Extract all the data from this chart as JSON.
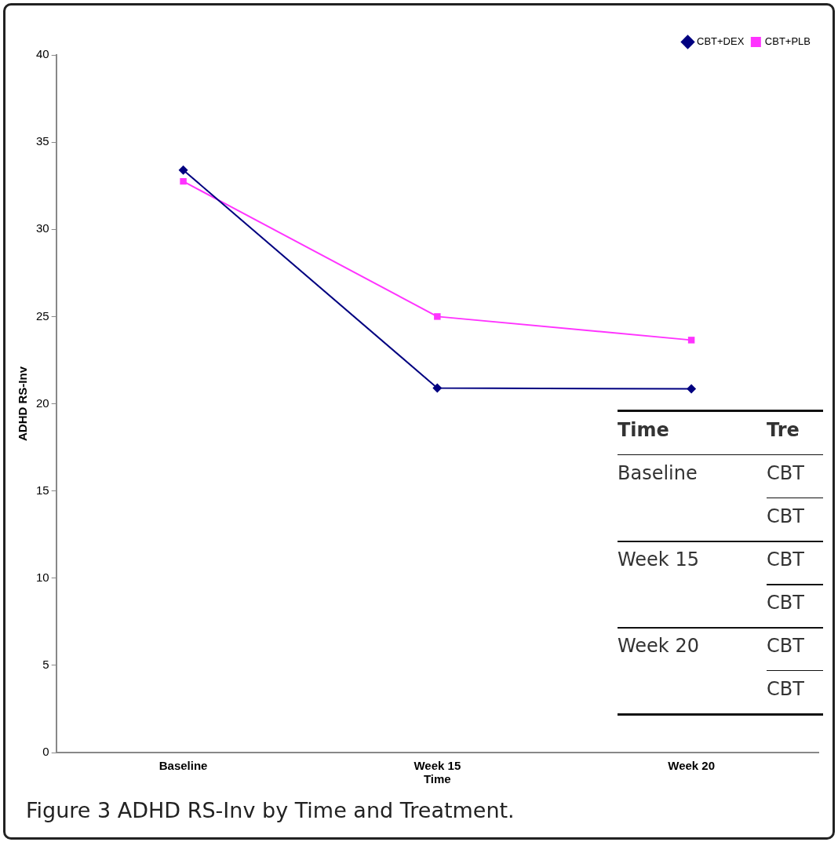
{
  "chart_data": {
    "type": "line",
    "title": "Figure 3 ADHD RS-Inv by Time and Treatment.",
    "xlabel": "Time",
    "ylabel": "ADHD RS-Inv",
    "categories": [
      "Baseline",
      "Week 15",
      "Week 20"
    ],
    "series": [
      {
        "name": "CBT+DEX",
        "color": "#000080",
        "values": [
          33.4,
          20.9,
          20.85
        ],
        "marker": "diamond"
      },
      {
        "name": "CBT+PLB",
        "color": "#ff33ff",
        "values": [
          32.75,
          25.0,
          23.65
        ],
        "marker": "square"
      }
    ],
    "ylim": [
      0,
      40
    ],
    "yticks": [
      0,
      5,
      10,
      15,
      20,
      25,
      30,
      35,
      40
    ],
    "grid": false,
    "legend": "top right",
    "line_style": "solid",
    "annotations": [
      "Time",
      "Tre",
      "Baseline",
      "CBT",
      "CBT",
      "Week 15",
      "CBT",
      "CBT",
      "Week 20",
      "CBT",
      "CBT"
    ]
  }
}
